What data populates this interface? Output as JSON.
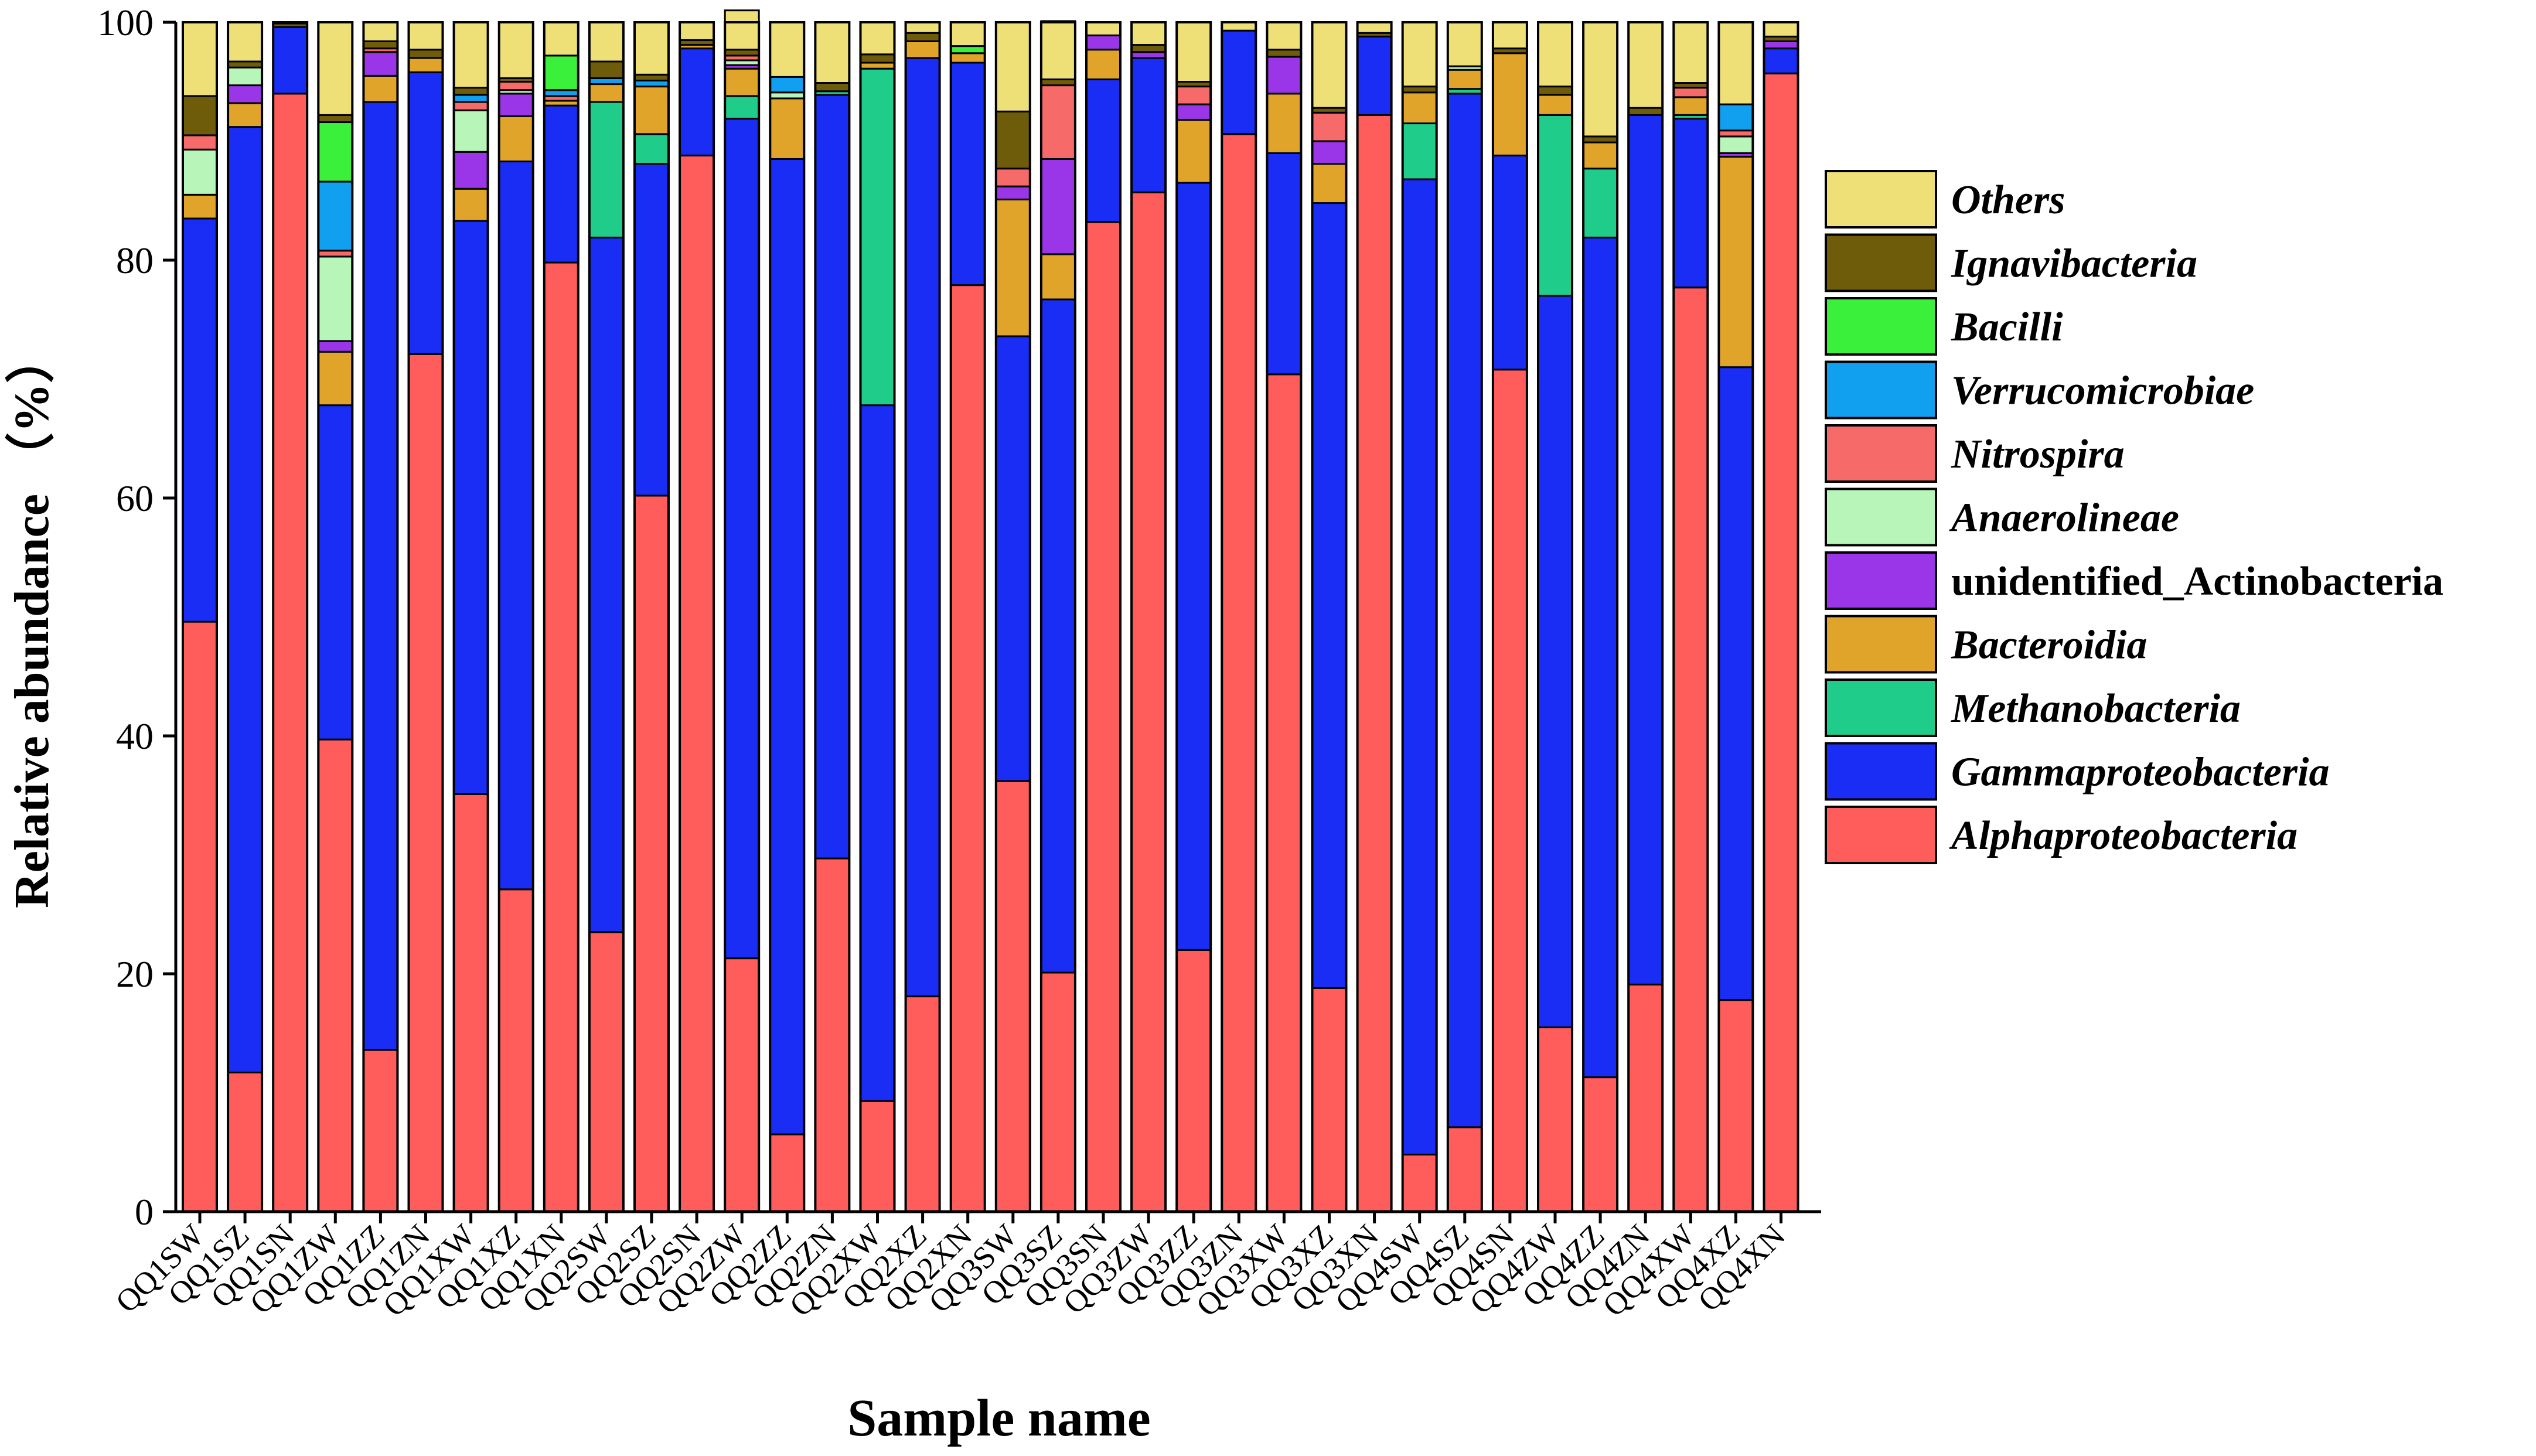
{
  "chart_data": {
    "type": "bar",
    "stacked": true,
    "xlabel": "Sample name",
    "ylabel": "Relative abundance （%）",
    "ylim": [
      0,
      100
    ],
    "yticks": [
      0,
      20,
      40,
      60,
      80,
      100
    ],
    "legend_position": "right",
    "categories": [
      "QQ1SW",
      "QQ1SZ",
      "QQ1SN",
      "QQ1ZW",
      "QQ1ZZ",
      "QQ1ZN",
      "QQ1XW",
      "QQ1XZ",
      "QQ1XN",
      "QQ2SW",
      "QQ2SZ",
      "QQ2SN",
      "QQ2ZW",
      "QQ2ZZ",
      "QQ2ZN",
      "QQ2XW",
      "QQ2XZ",
      "QQ2XN",
      "QQ3SW",
      "QQ3SZ",
      "QQ3SN",
      "QQ3ZW",
      "QQ3ZZ",
      "QQ3ZN",
      "QQ3XW",
      "QQ3XZ",
      "QQ3XN",
      "QQ4SW",
      "QQ4SZ",
      "QQ4SN",
      "QQ4ZW",
      "QQ4ZZ",
      "QQ4ZN",
      "QQ4XW",
      "QQ4XZ",
      "QQ4XN"
    ],
    "series": [
      {
        "name": "Alphaproteobacteria",
        "color": "#FF5C5C",
        "values": [
          49.6,
          11.7,
          94.0,
          39.7,
          13.6,
          72.1,
          35.1,
          27.1,
          79.8,
          23.5,
          60.2,
          88.8,
          21.3,
          6.5,
          29.7,
          9.3,
          18.1,
          77.9,
          36.2,
          20.1,
          83.2,
          85.7,
          22.0,
          90.6,
          70.4,
          18.8,
          92.2,
          4.8,
          7.1,
          70.8,
          15.5,
          11.3,
          19.1,
          77.7,
          17.8,
          95.7
        ]
      },
      {
        "name": "Gammaproteobacteria",
        "color": "#1A2DF5",
        "values": [
          33.9,
          79.5,
          5.6,
          28.1,
          79.7,
          23.7,
          48.2,
          61.2,
          13.2,
          58.4,
          27.9,
          9.0,
          70.6,
          82.0,
          64.2,
          58.5,
          78.9,
          18.7,
          37.4,
          56.6,
          12.0,
          11.3,
          64.5,
          8.7,
          18.6,
          66.0,
          6.6,
          82.0,
          86.9,
          18.0,
          61.5,
          70.6,
          73.1,
          14.2,
          53.2,
          2.1
        ]
      },
      {
        "name": "Methanobacteria",
        "color": "#1FCC8A",
        "values": [
          0,
          0,
          0,
          0,
          0,
          0,
          0,
          0,
          0,
          11.4,
          2.5,
          0,
          1.9,
          0,
          0.3,
          28.3,
          0,
          0,
          0,
          0,
          0,
          0,
          0,
          0,
          0,
          0,
          0,
          4.7,
          0.4,
          0,
          15.2,
          5.8,
          0,
          0.3,
          0,
          0
        ]
      },
      {
        "name": "Bacteroidia",
        "color": "#E0A42A",
        "values": [
          2.0,
          2.0,
          0,
          4.5,
          2.2,
          1.2,
          2.7,
          3.8,
          0.4,
          1.5,
          4.0,
          0.3,
          2.3,
          5.1,
          0,
          0.5,
          1.4,
          0.8,
          11.5,
          3.8,
          2.5,
          0,
          5.3,
          0,
          5.0,
          3.3,
          0,
          2.6,
          1.6,
          8.6,
          1.7,
          2.2,
          0,
          1.5,
          17.7,
          0
        ]
      },
      {
        "name": "unidentified_Actinobacteria",
        "color": "#9B35E8",
        "values": [
          0,
          1.5,
          0,
          0.9,
          2.0,
          0,
          3.1,
          1.9,
          0,
          0,
          0,
          0,
          0.3,
          0,
          0,
          0,
          0,
          0,
          1.1,
          8.0,
          1.2,
          0.5,
          1.3,
          0,
          3.1,
          1.9,
          0,
          0,
          0,
          0,
          0,
          0,
          0,
          0,
          0.3,
          0.6
        ]
      },
      {
        "name": "Anaerolineae",
        "color": "#B8F5B8",
        "values": [
          3.8,
          1.5,
          0,
          7.1,
          0,
          0,
          3.5,
          0.3,
          0,
          0,
          0,
          0,
          0.4,
          0.5,
          0,
          0,
          0,
          0,
          0,
          0,
          0,
          0,
          0,
          0,
          0,
          0,
          0,
          0,
          0.3,
          0,
          0,
          0,
          0,
          0,
          1.4,
          0
        ]
      },
      {
        "name": "Nitrospira",
        "color": "#F76A6A",
        "values": [
          1.2,
          0,
          0,
          0.5,
          0.3,
          0,
          0.7,
          0.7,
          0.4,
          0,
          0,
          0,
          0.4,
          0,
          0,
          0,
          0,
          0,
          1.5,
          6.2,
          0,
          0,
          1.5,
          0,
          0,
          2.4,
          0,
          0,
          0,
          0,
          0,
          0,
          0,
          0.8,
          0.5,
          0
        ]
      },
      {
        "name": "Verrucomicrobiae",
        "color": "#119FF0",
        "values": [
          0,
          0,
          0,
          5.8,
          0,
          0,
          0.6,
          0,
          0.5,
          0.5,
          0.5,
          0,
          0,
          1.3,
          0,
          0,
          0,
          0,
          0,
          0,
          0,
          0,
          0,
          0,
          0,
          0,
          0,
          0,
          0,
          0,
          0,
          0,
          0,
          0,
          2.2,
          0
        ]
      },
      {
        "name": "Bacilli",
        "color": "#3AF03A",
        "values": [
          0,
          0,
          0,
          5.0,
          0,
          0,
          0,
          0,
          2.9,
          0,
          0,
          0,
          0,
          0,
          0,
          0,
          0,
          0.6,
          0,
          0,
          0,
          0,
          0,
          0,
          0,
          0,
          0,
          0,
          0,
          0,
          0,
          0,
          0,
          0,
          0,
          0
        ]
      },
      {
        "name": "Ignavibacteria",
        "color": "#6E5C0A",
        "values": [
          3.3,
          0.5,
          0.3,
          0.6,
          0.6,
          0.7,
          0.6,
          0.3,
          0,
          1.4,
          0.5,
          0.4,
          0.5,
          0,
          0.7,
          0.7,
          0.7,
          0,
          4.8,
          0.5,
          0,
          0.6,
          0.4,
          0,
          0.6,
          0.4,
          0.3,
          0.5,
          0,
          0.4,
          0.7,
          0.5,
          0.6,
          0.4,
          0,
          0.4
        ]
      },
      {
        "name": "Others",
        "color": "#EEE077",
        "values": [
          6.2,
          3.3,
          0.1,
          7.8,
          1.6,
          2.3,
          5.5,
          4.7,
          2.8,
          3.3,
          4.4,
          1.5,
          3.3,
          4.6,
          5.1,
          2.7,
          0.9,
          2.0,
          7.5,
          4.9,
          1.1,
          1.9,
          5.0,
          0.7,
          2.3,
          7.2,
          0.9,
          5.4,
          3.7,
          2.2,
          5.4,
          9.6,
          7.2,
          5.1,
          6.9,
          1.2
        ]
      }
    ]
  }
}
